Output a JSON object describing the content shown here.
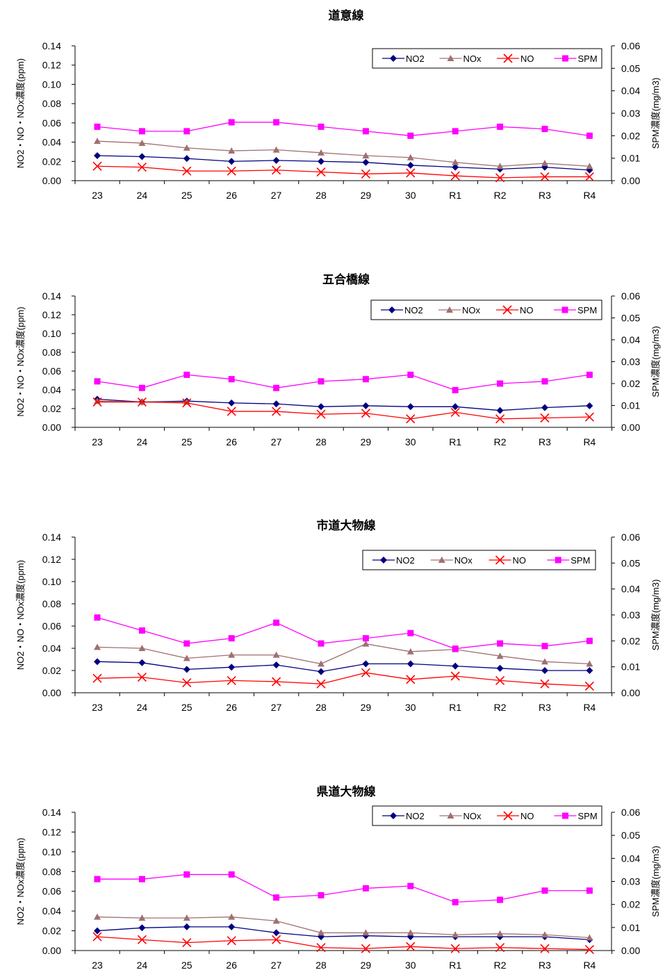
{
  "chart_data": [
    {
      "type": "line",
      "title": "道意線",
      "ylabel": "NO2・NO・NOx濃度(ppm)",
      "y2label": "SPM濃度(mg/m3)",
      "categories": [
        "23",
        "24",
        "25",
        "26",
        "27",
        "28",
        "29",
        "30",
        "R1",
        "R2",
        "R3",
        "R4"
      ],
      "ylim": [
        0,
        0.14
      ],
      "y2lim": [
        0,
        0.06
      ],
      "yticks": [
        "0.14",
        "0.12",
        "0.10",
        "0.08",
        "0.06",
        "0.04",
        "0.02",
        "0.00"
      ],
      "y2ticks": [
        "0.06",
        "0.05",
        "0.04",
        "0.03",
        "0.02",
        "0.01",
        "0.00"
      ],
      "legend": "top-right",
      "series": [
        {
          "name": "NO2",
          "axis": "left",
          "marker": "diamond",
          "color": "#000080",
          "values": [
            0.026,
            0.025,
            0.023,
            0.02,
            0.021,
            0.02,
            0.019,
            0.016,
            0.014,
            0.012,
            0.014,
            0.011
          ]
        },
        {
          "name": "NOx",
          "axis": "left",
          "marker": "triangle",
          "color": "#a07070",
          "values": [
            0.041,
            0.039,
            0.034,
            0.031,
            0.032,
            0.029,
            0.026,
            0.024,
            0.019,
            0.015,
            0.018,
            0.015
          ]
        },
        {
          "name": "NO",
          "axis": "left",
          "marker": "x",
          "color": "#ff0000",
          "values": [
            0.015,
            0.014,
            0.01,
            0.01,
            0.011,
            0.009,
            0.007,
            0.008,
            0.005,
            0.003,
            0.004,
            0.004
          ]
        },
        {
          "name": "SPM",
          "axis": "right",
          "marker": "square",
          "color": "#ff00ff",
          "values": [
            0.024,
            0.022,
            0.022,
            0.026,
            0.026,
            0.024,
            0.022,
            0.02,
            0.022,
            0.024,
            0.023,
            0.02
          ]
        }
      ]
    },
    {
      "type": "line",
      "title": "五合橋線",
      "ylabel": "NO2・NO・NOx濃度(ppm)",
      "y2label": "SPM濃度(mg/m3)",
      "categories": [
        "23",
        "24",
        "25",
        "26",
        "27",
        "28",
        "29",
        "30",
        "R1",
        "R2",
        "R3",
        "R4"
      ],
      "ylim": [
        0,
        0.14
      ],
      "y2lim": [
        0,
        0.06
      ],
      "yticks": [
        "0.14",
        "0.12",
        "0.10",
        "0.08",
        "0.06",
        "0.04",
        "0.02",
        "0.00"
      ],
      "y2ticks": [
        "0.06",
        "0.05",
        "0.04",
        "0.03",
        "0.02",
        "0.01",
        "0.00"
      ],
      "legend": "top-right",
      "series": [
        {
          "name": "NO2",
          "axis": "left",
          "marker": "diamond",
          "color": "#000080",
          "values": [
            0.03,
            0.027,
            0.028,
            0.026,
            0.025,
            0.022,
            0.023,
            0.022,
            0.022,
            0.018,
            0.021,
            0.023
          ]
        },
        {
          "name": "NOx",
          "axis": "left",
          "marker": "triangle",
          "color": "#a07070",
          "values": [
            0.028,
            0.027,
            0.027,
            null,
            null,
            null,
            null,
            null,
            null,
            null,
            null,
            null
          ]
        },
        {
          "name": "NO",
          "axis": "left",
          "marker": "x",
          "color": "#ff0000",
          "values": [
            0.027,
            0.027,
            0.026,
            0.017,
            0.017,
            0.014,
            0.015,
            0.009,
            0.016,
            0.009,
            0.01,
            0.011
          ]
        },
        {
          "name": "SPM",
          "axis": "right",
          "marker": "square",
          "color": "#ff00ff",
          "values": [
            0.021,
            0.018,
            0.024,
            0.022,
            0.018,
            0.021,
            0.022,
            0.024,
            0.017,
            0.02,
            0.021,
            0.024
          ]
        }
      ]
    },
    {
      "type": "line",
      "title": "市道大物線",
      "ylabel": "NO2・NO・NOx濃度(ppm)",
      "y2label": "SPM濃度(mg/m3)",
      "categories": [
        "23",
        "24",
        "25",
        "26",
        "27",
        "28",
        "29",
        "30",
        "R1",
        "R2",
        "R3",
        "R4"
      ],
      "ylim": [
        0,
        0.14
      ],
      "y2lim": [
        0,
        0.06
      ],
      "yticks": [
        "0.14",
        "0.12",
        "0.10",
        "0.08",
        "0.06",
        "0.04",
        "0.02",
        "0.00"
      ],
      "y2ticks": [
        "0.06",
        "0.05",
        "0.04",
        "0.03",
        "0.02",
        "0.01",
        "0.00"
      ],
      "legend": "top-right",
      "series": [
        {
          "name": "NO2",
          "axis": "left",
          "marker": "diamond",
          "color": "#000080",
          "values": [
            0.028,
            0.027,
            0.021,
            0.023,
            0.025,
            0.019,
            0.026,
            0.026,
            0.024,
            0.022,
            0.02,
            0.02
          ]
        },
        {
          "name": "NOx",
          "axis": "left",
          "marker": "triangle",
          "color": "#a07070",
          "values": [
            0.041,
            0.04,
            0.031,
            0.034,
            0.034,
            0.026,
            0.044,
            0.037,
            0.039,
            0.033,
            0.028,
            0.026
          ]
        },
        {
          "name": "NO",
          "axis": "left",
          "marker": "x",
          "color": "#ff0000",
          "values": [
            0.013,
            0.014,
            0.009,
            0.011,
            0.01,
            0.008,
            0.018,
            0.012,
            0.015,
            0.011,
            0.008,
            0.006
          ]
        },
        {
          "name": "SPM",
          "axis": "right",
          "marker": "square",
          "color": "#ff00ff",
          "values": [
            0.029,
            0.024,
            0.019,
            0.021,
            0.027,
            0.019,
            0.021,
            0.023,
            0.017,
            0.019,
            0.018,
            0.02
          ]
        }
      ]
    },
    {
      "type": "line",
      "title": "県道大物線",
      "ylabel": "NO2・NOx濃度(ppm)",
      "y2label": "SPM濃度(mg/m3)",
      "categories": [
        "23",
        "24",
        "25",
        "26",
        "27",
        "28",
        "29",
        "30",
        "R1",
        "R2",
        "R3",
        "R4"
      ],
      "ylim": [
        0,
        0.14
      ],
      "y2lim": [
        0,
        0.06
      ],
      "yticks": [
        "0.14",
        "0.12",
        "0.10",
        "0.08",
        "0.06",
        "0.04",
        "0.02",
        "0.00"
      ],
      "y2ticks": [
        "0.06",
        "0.05",
        "0.04",
        "0.03",
        "0.02",
        "0.01",
        "0.00"
      ],
      "legend": "top-right",
      "series": [
        {
          "name": "NO2",
          "axis": "left",
          "marker": "diamond",
          "color": "#000080",
          "values": [
            0.02,
            0.023,
            0.024,
            0.024,
            0.018,
            0.014,
            0.015,
            0.014,
            0.014,
            0.014,
            0.014,
            0.011
          ]
        },
        {
          "name": "NOx",
          "axis": "left",
          "marker": "triangle",
          "color": "#a07070",
          "values": [
            0.034,
            0.033,
            0.033,
            0.034,
            0.03,
            0.018,
            0.018,
            0.018,
            0.016,
            0.017,
            0.016,
            0.013
          ]
        },
        {
          "name": "NO",
          "axis": "left",
          "marker": "x",
          "color": "#ff0000",
          "values": [
            0.014,
            0.011,
            0.008,
            0.01,
            0.011,
            0.003,
            0.002,
            0.004,
            0.002,
            0.003,
            0.002,
            0.001
          ]
        },
        {
          "name": "SPM",
          "axis": "right",
          "marker": "square",
          "color": "#ff00ff",
          "values": [
            0.031,
            0.031,
            0.033,
            0.033,
            0.023,
            0.024,
            0.027,
            0.028,
            0.021,
            0.022,
            0.026,
            0.026
          ]
        }
      ]
    }
  ]
}
